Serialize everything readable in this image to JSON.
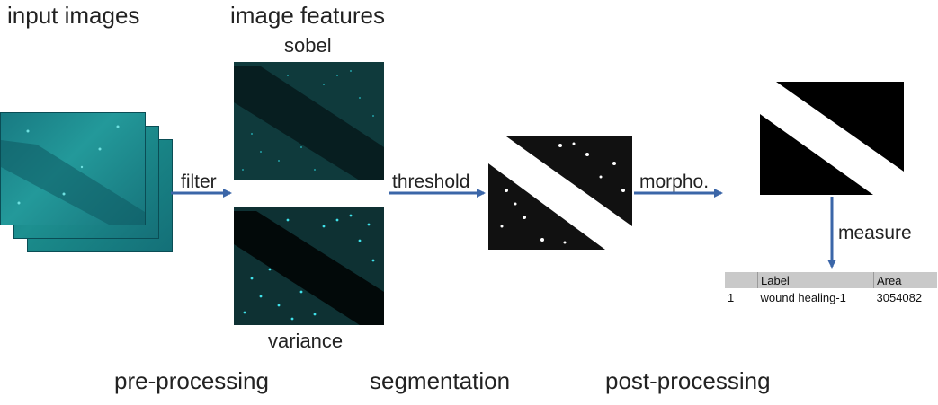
{
  "headings": {
    "input_images": "input images",
    "image_features": "image features"
  },
  "features": {
    "sobel": "sobel",
    "variance": "variance"
  },
  "arrows": {
    "filter": "filter",
    "threshold": "threshold",
    "morpho": "morpho.",
    "measure": "measure"
  },
  "stages": {
    "pre": "pre-processing",
    "seg": "segmentation",
    "post": "post-processing"
  },
  "table": {
    "headers": [
      "",
      "Label",
      "Area"
    ],
    "rows": [
      [
        "1",
        "wound healing-1",
        "3054082"
      ]
    ]
  },
  "colors": {
    "arrow": "#3b66a8",
    "teal": "#1e8c8c",
    "header_bg": "#c9c9c9"
  }
}
